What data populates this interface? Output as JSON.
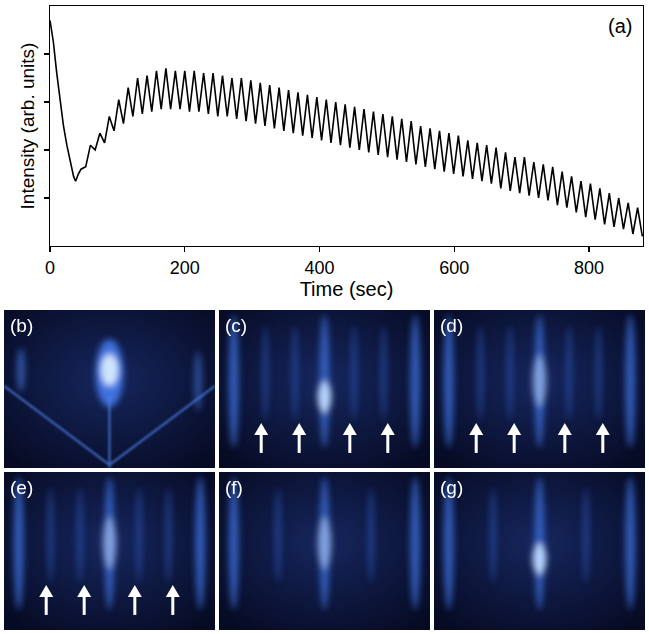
{
  "chart_data": {
    "type": "line",
    "xlabel": "Time (sec)",
    "ylabel": "Intensity (arb. units)",
    "annotations": [
      "(a)"
    ],
    "color": "#000000",
    "xlim": [
      0,
      880
    ],
    "xticks": [
      0,
      200,
      400,
      600,
      800
    ],
    "ylim": [
      0,
      1
    ],
    "yticks": [
      0.2,
      0.4,
      0.6,
      0.8
    ],
    "tick_labels": "x",
    "x": [
      0,
      5,
      10,
      15,
      20,
      25,
      30,
      35,
      38,
      42,
      46,
      53,
      60,
      67,
      74,
      81,
      88,
      95,
      102,
      109,
      116,
      123,
      130,
      137,
      144,
      151,
      158,
      165,
      172,
      179,
      186,
      193,
      200,
      207,
      214,
      221,
      228,
      235,
      242,
      249,
      256,
      263,
      270,
      277,
      284,
      291,
      298,
      305,
      312,
      319,
      326,
      333,
      340,
      347,
      354,
      361,
      368,
      375,
      382,
      389,
      396,
      403,
      410,
      417,
      424,
      431,
      438,
      445,
      452,
      459,
      466,
      473,
      480,
      487,
      494,
      501,
      508,
      515,
      522,
      529,
      536,
      543,
      550,
      557,
      564,
      571,
      578,
      585,
      592,
      599,
      606,
      613,
      620,
      627,
      634,
      641,
      648,
      655,
      662,
      669,
      676,
      683,
      690,
      697,
      704,
      711,
      718,
      725,
      732,
      739,
      746,
      753,
      760,
      767,
      774,
      781,
      788,
      795,
      802,
      809,
      816,
      823,
      830,
      837,
      844,
      851,
      858,
      865,
      872,
      879
    ],
    "values": [
      0.94,
      0.85,
      0.72,
      0.6,
      0.5,
      0.42,
      0.35,
      0.29,
      0.27,
      0.3,
      0.32,
      0.33,
      0.42,
      0.4,
      0.47,
      0.43,
      0.54,
      0.48,
      0.61,
      0.51,
      0.66,
      0.54,
      0.7,
      0.55,
      0.71,
      0.56,
      0.73,
      0.57,
      0.74,
      0.57,
      0.73,
      0.57,
      0.73,
      0.56,
      0.73,
      0.56,
      0.72,
      0.55,
      0.72,
      0.54,
      0.71,
      0.54,
      0.7,
      0.53,
      0.7,
      0.52,
      0.69,
      0.51,
      0.68,
      0.5,
      0.67,
      0.49,
      0.66,
      0.48,
      0.65,
      0.47,
      0.64,
      0.46,
      0.63,
      0.45,
      0.62,
      0.44,
      0.61,
      0.43,
      0.6,
      0.42,
      0.59,
      0.41,
      0.58,
      0.4,
      0.57,
      0.39,
      0.56,
      0.38,
      0.55,
      0.37,
      0.54,
      0.36,
      0.53,
      0.35,
      0.52,
      0.34,
      0.5,
      0.33,
      0.49,
      0.32,
      0.48,
      0.31,
      0.47,
      0.3,
      0.46,
      0.29,
      0.44,
      0.28,
      0.43,
      0.27,
      0.42,
      0.26,
      0.41,
      0.24,
      0.39,
      0.23,
      0.37,
      0.22,
      0.37,
      0.21,
      0.35,
      0.2,
      0.34,
      0.19,
      0.33,
      0.17,
      0.31,
      0.16,
      0.29,
      0.14,
      0.27,
      0.12,
      0.26,
      0.11,
      0.24,
      0.09,
      0.22,
      0.08,
      0.2,
      0.07,
      0.18,
      0.05,
      0.16,
      0.04
    ]
  },
  "panels": [
    {
      "label": "(b)",
      "arrows": false
    },
    {
      "label": "(c)",
      "arrows": true
    },
    {
      "label": "(d)",
      "arrows": true
    },
    {
      "label": "(e)",
      "arrows": true
    },
    {
      "label": "(f)",
      "arrows": false
    },
    {
      "label": "(g)",
      "arrows": false
    }
  ]
}
